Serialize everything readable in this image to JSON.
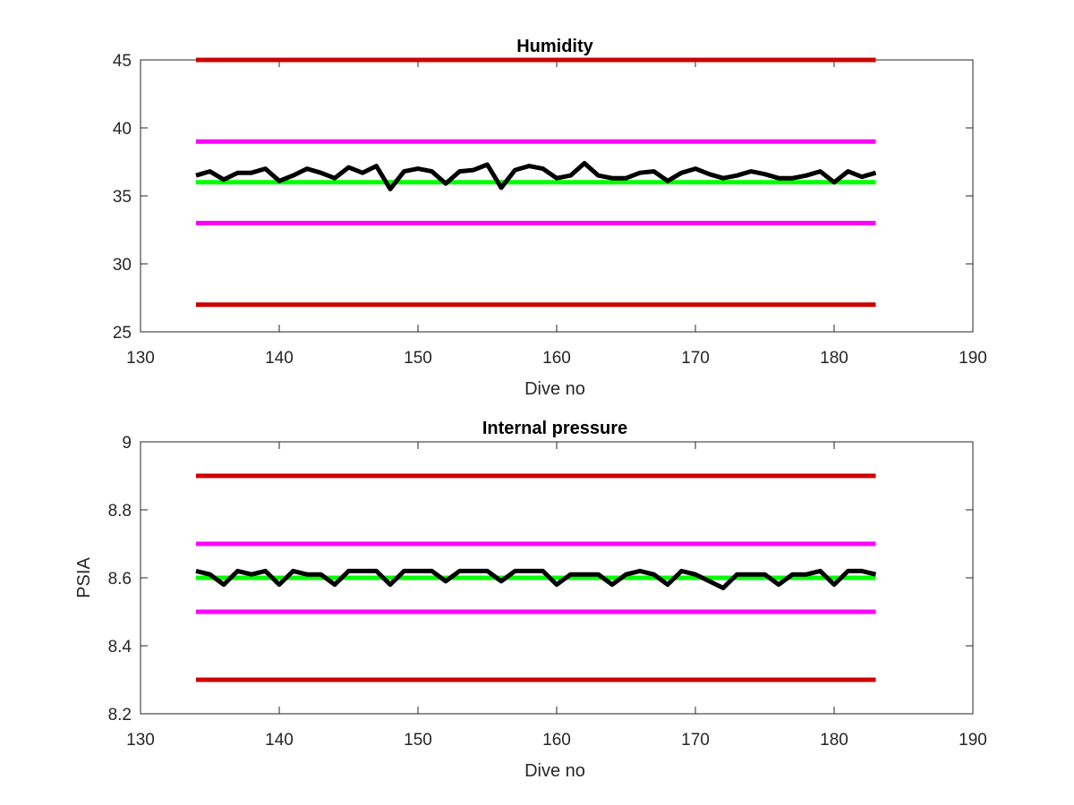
{
  "chart_data": [
    {
      "type": "line",
      "title": "Humidity",
      "xlabel": "Dive no",
      "ylabel": "",
      "xlim": [
        130,
        190
      ],
      "ylim": [
        25,
        45
      ],
      "xticks": [
        130,
        140,
        150,
        160,
        170,
        180,
        190
      ],
      "yticks": [
        25,
        30,
        35,
        40,
        45
      ],
      "grid": false,
      "series": [
        {
          "color": "#cc0000",
          "x": [
            134,
            183
          ],
          "y": [
            45,
            45
          ]
        },
        {
          "color": "#ff00ff",
          "x": [
            134,
            183
          ],
          "y": [
            39,
            39
          ]
        },
        {
          "color": "#00ff00",
          "x": [
            134,
            183
          ],
          "y": [
            36,
            36
          ]
        },
        {
          "color": "#ff00ff",
          "x": [
            134,
            183
          ],
          "y": [
            33,
            33
          ]
        },
        {
          "color": "#cc0000",
          "x": [
            134,
            183
          ],
          "y": [
            27,
            27
          ]
        },
        {
          "color": "#000000",
          "x": [
            134,
            135,
            136,
            137,
            138,
            139,
            140,
            141,
            142,
            143,
            144,
            145,
            146,
            147,
            148,
            149,
            150,
            151,
            152,
            153,
            154,
            155,
            156,
            157,
            158,
            159,
            160,
            161,
            162,
            163,
            164,
            165,
            166,
            167,
            168,
            169,
            170,
            171,
            172,
            173,
            174,
            175,
            176,
            177,
            178,
            179,
            180,
            181,
            182,
            183
          ],
          "y": [
            36.5,
            36.8,
            36.2,
            36.7,
            36.7,
            37.0,
            36.1,
            36.5,
            37.0,
            36.7,
            36.3,
            37.1,
            36.7,
            37.2,
            35.5,
            36.8,
            37.0,
            36.8,
            35.9,
            36.8,
            36.9,
            37.3,
            35.6,
            36.9,
            37.2,
            37.0,
            36.3,
            36.5,
            37.4,
            36.5,
            36.3,
            36.3,
            36.7,
            36.8,
            36.1,
            36.7,
            37.0,
            36.6,
            36.3,
            36.5,
            36.8,
            36.6,
            36.3,
            36.3,
            36.5,
            36.8,
            36.0,
            36.8,
            36.4,
            36.7
          ]
        }
      ]
    },
    {
      "type": "line",
      "title": "Internal pressure",
      "xlabel": "Dive no",
      "ylabel": "PSIA",
      "xlim": [
        130,
        190
      ],
      "ylim": [
        8.2,
        9
      ],
      "xticks": [
        130,
        140,
        150,
        160,
        170,
        180,
        190
      ],
      "yticks": [
        8.2,
        8.4,
        8.6,
        8.8,
        9
      ],
      "grid": false,
      "series": [
        {
          "color": "#cc0000",
          "x": [
            134,
            183
          ],
          "y": [
            8.9,
            8.9
          ]
        },
        {
          "color": "#ff00ff",
          "x": [
            134,
            183
          ],
          "y": [
            8.7,
            8.7
          ]
        },
        {
          "color": "#00ff00",
          "x": [
            134,
            183
          ],
          "y": [
            8.6,
            8.6
          ]
        },
        {
          "color": "#ff00ff",
          "x": [
            134,
            183
          ],
          "y": [
            8.5,
            8.5
          ]
        },
        {
          "color": "#cc0000",
          "x": [
            134,
            183
          ],
          "y": [
            8.3,
            8.3
          ]
        },
        {
          "color": "#000000",
          "x": [
            134,
            135,
            136,
            137,
            138,
            139,
            140,
            141,
            142,
            143,
            144,
            145,
            146,
            147,
            148,
            149,
            150,
            151,
            152,
            153,
            154,
            155,
            156,
            157,
            158,
            159,
            160,
            161,
            162,
            163,
            164,
            165,
            166,
            167,
            168,
            169,
            170,
            171,
            172,
            173,
            174,
            175,
            176,
            177,
            178,
            179,
            180,
            181,
            182,
            183
          ],
          "y": [
            8.62,
            8.61,
            8.58,
            8.62,
            8.61,
            8.62,
            8.58,
            8.62,
            8.61,
            8.61,
            8.58,
            8.62,
            8.62,
            8.62,
            8.58,
            8.62,
            8.62,
            8.62,
            8.59,
            8.62,
            8.62,
            8.62,
            8.59,
            8.62,
            8.62,
            8.62,
            8.58,
            8.61,
            8.61,
            8.61,
            8.58,
            8.61,
            8.62,
            8.61,
            8.58,
            8.62,
            8.61,
            8.59,
            8.57,
            8.61,
            8.61,
            8.61,
            8.58,
            8.61,
            8.61,
            8.62,
            8.58,
            8.62,
            8.62,
            8.61
          ]
        }
      ]
    }
  ]
}
